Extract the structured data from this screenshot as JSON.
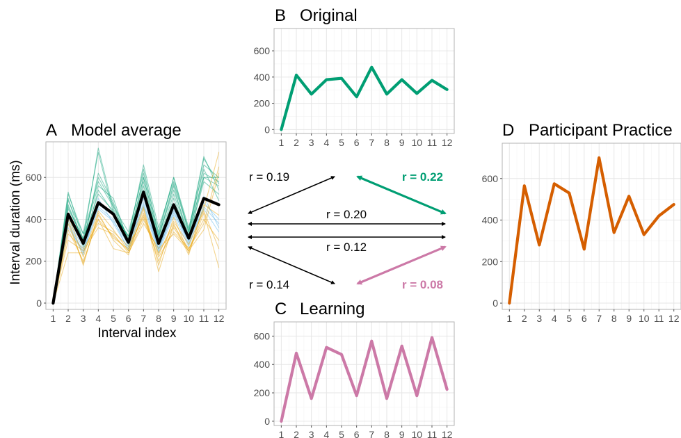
{
  "figure": {
    "panels": {
      "A": {
        "letter": "A",
        "title": "Model average",
        "xlabel": "Interval index",
        "ylabel": "Interval duration (ms)"
      },
      "B": {
        "letter": "B",
        "title": "Original"
      },
      "C": {
        "letter": "C",
        "title": "Learning"
      },
      "D": {
        "letter": "D",
        "title": "Participant Practice"
      }
    },
    "correlations": [
      {
        "text": "r = 0.19",
        "color": "#000000",
        "bold": false
      },
      {
        "text": "r = 0.22",
        "color": "#009e73",
        "bold": true
      },
      {
        "text": "r = 0.20",
        "color": "#000000",
        "bold": false
      },
      {
        "text": "r = 0.12",
        "color": "#000000",
        "bold": false
      },
      {
        "text": "r = 0.14",
        "color": "#000000",
        "bold": false
      },
      {
        "text": "r = 0.08",
        "color": "#cc79a7",
        "bold": true
      }
    ]
  },
  "chart_data": [
    {
      "panel": "A",
      "type": "line",
      "title": "Model average",
      "xlabel": "Interval index",
      "ylabel": "Interval duration (ms)",
      "x": [
        1,
        2,
        3,
        4,
        5,
        6,
        7,
        8,
        9,
        10,
        11,
        12
      ],
      "x_ticks": [
        "1",
        "2",
        "3",
        "4",
        "5",
        "6",
        "7",
        "8",
        "9",
        "10",
        "11",
        "12"
      ],
      "y_ticks": [
        0,
        200,
        400,
        600
      ],
      "ylim": [
        -30,
        770
      ],
      "grid": true,
      "series": [
        {
          "color": "#000000",
          "role": "average",
          "values": [
            0,
            425,
            285,
            480,
            425,
            290,
            530,
            285,
            470,
            310,
            500,
            470
          ]
        },
        {
          "color": "#009e73",
          "role": "individual",
          "values": [
            0,
            530,
            300,
            740,
            450,
            310,
            660,
            360,
            580,
            350,
            700,
            540
          ]
        },
        {
          "color": "#009e73",
          "role": "individual",
          "values": [
            0,
            520,
            330,
            720,
            430,
            320,
            640,
            330,
            600,
            340,
            690,
            570
          ]
        },
        {
          "color": "#009e73",
          "role": "individual",
          "values": [
            0,
            500,
            280,
            620,
            480,
            300,
            600,
            320,
            540,
            330,
            660,
            600
          ]
        },
        {
          "color": "#009e73",
          "role": "individual",
          "values": [
            0,
            470,
            290,
            600,
            470,
            280,
            580,
            300,
            520,
            320,
            620,
            580
          ]
        },
        {
          "color": "#009e73",
          "role": "individual",
          "values": [
            0,
            450,
            310,
            560,
            500,
            290,
            560,
            310,
            560,
            300,
            600,
            560
          ]
        },
        {
          "color": "#009e73",
          "role": "individual",
          "values": [
            0,
            430,
            270,
            540,
            430,
            320,
            540,
            290,
            500,
            310,
            580,
            520
          ]
        },
        {
          "color": "#009e73",
          "role": "individual",
          "values": [
            0,
            490,
            330,
            580,
            460,
            340,
            620,
            340,
            600,
            360,
            640,
            490
          ]
        },
        {
          "color": "#009e73",
          "role": "individual",
          "values": [
            0,
            460,
            300,
            520,
            440,
            300,
            600,
            320,
            570,
            340,
            600,
            600
          ]
        },
        {
          "color": "#56b4e9",
          "role": "individual",
          "values": [
            0,
            380,
            230,
            500,
            380,
            260,
            480,
            250,
            440,
            280,
            480,
            400
          ]
        },
        {
          "color": "#56b4e9",
          "role": "individual",
          "values": [
            0,
            360,
            250,
            460,
            400,
            250,
            460,
            240,
            420,
            270,
            460,
            380
          ]
        },
        {
          "color": "#56b4e9",
          "role": "individual",
          "values": [
            0,
            400,
            260,
            470,
            420,
            270,
            500,
            260,
            450,
            290,
            510,
            360
          ]
        },
        {
          "color": "#56b4e9",
          "role": "individual",
          "values": [
            0,
            390,
            240,
            450,
            390,
            280,
            470,
            260,
            430,
            300,
            450,
            340
          ]
        },
        {
          "color": "#e69f00",
          "role": "individual",
          "values": [
            0,
            400,
            180,
            430,
            300,
            230,
            450,
            150,
            380,
            230,
            470,
            420
          ]
        },
        {
          "color": "#e69f00",
          "role": "individual",
          "values": [
            0,
            350,
            200,
            400,
            320,
            250,
            420,
            200,
            360,
            250,
            450,
            720
          ]
        },
        {
          "color": "#e69f00",
          "role": "individual",
          "values": [
            0,
            300,
            250,
            360,
            330,
            240,
            400,
            220,
            340,
            260,
            380,
            650
          ]
        },
        {
          "color": "#e69f00",
          "role": "individual",
          "values": [
            0,
            380,
            190,
            420,
            310,
            260,
            460,
            180,
            410,
            240,
            430,
            170
          ]
        },
        {
          "color": "#e69f00",
          "role": "individual",
          "values": [
            0,
            420,
            220,
            440,
            350,
            250,
            430,
            230,
            390,
            280,
            440,
            260
          ]
        },
        {
          "color": "#e69f00",
          "role": "individual",
          "values": [
            0,
            330,
            260,
            380,
            340,
            270,
            410,
            240,
            370,
            260,
            400,
            300
          ]
        },
        {
          "color": "#e69f00",
          "role": "individual",
          "values": [
            0,
            240,
            240,
            400,
            260,
            240,
            380,
            260,
            330,
            250,
            350,
            620
          ]
        }
      ]
    },
    {
      "panel": "B",
      "type": "line",
      "title": "Original",
      "x": [
        1,
        2,
        3,
        4,
        5,
        6,
        7,
        8,
        9,
        10,
        11,
        12
      ],
      "x_ticks": [
        "1",
        "2",
        "3",
        "4",
        "5",
        "6",
        "7",
        "8",
        "9",
        "10",
        "11",
        "12"
      ],
      "y_ticks": [
        0,
        200,
        400,
        600
      ],
      "ylim": [
        -30,
        770
      ],
      "grid": true,
      "series": [
        {
          "color": "#009e73",
          "values": [
            0,
            415,
            270,
            380,
            390,
            250,
            475,
            270,
            380,
            275,
            375,
            305
          ]
        }
      ]
    },
    {
      "panel": "C",
      "type": "line",
      "title": "Learning",
      "x": [
        1,
        2,
        3,
        4,
        5,
        6,
        7,
        8,
        9,
        10,
        11,
        12
      ],
      "x_ticks": [
        "1",
        "2",
        "3",
        "4",
        "5",
        "6",
        "7",
        "8",
        "9",
        "10",
        "11",
        "12"
      ],
      "y_ticks": [
        0,
        200,
        400,
        600
      ],
      "ylim": [
        -30,
        700
      ],
      "grid": true,
      "series": [
        {
          "color": "#cc79a7",
          "values": [
            0,
            480,
            160,
            520,
            470,
            180,
            565,
            160,
            530,
            180,
            590,
            225
          ]
        }
      ]
    },
    {
      "panel": "D",
      "type": "line",
      "title": "Participant Practice",
      "x": [
        1,
        2,
        3,
        4,
        5,
        6,
        7,
        8,
        9,
        10,
        11,
        12
      ],
      "x_ticks": [
        "1",
        "2",
        "3",
        "4",
        "5",
        "6",
        "7",
        "8",
        "9",
        "10",
        "11",
        "12"
      ],
      "y_ticks": [
        0,
        200,
        400,
        600
      ],
      "ylim": [
        -30,
        770
      ],
      "grid": true,
      "series": [
        {
          "color": "#d55e00",
          "values": [
            0,
            565,
            280,
            575,
            530,
            260,
            700,
            340,
            515,
            330,
            420,
            475
          ]
        }
      ]
    }
  ]
}
